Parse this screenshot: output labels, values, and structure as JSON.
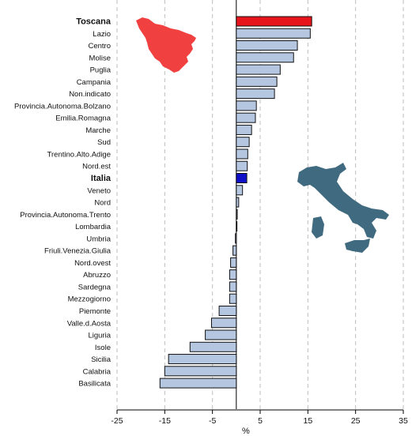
{
  "chart_data": {
    "type": "bar",
    "orientation": "horizontal",
    "xlabel": "%",
    "ylabel": "",
    "xlim": [
      -25,
      35
    ],
    "xticks": [
      -25,
      -15,
      -5,
      5,
      15,
      25,
      35
    ],
    "grid": "vertical dashed lines at ticks",
    "categories": [
      "Toscana",
      "Lazio",
      "Centro",
      "Molise",
      "Puglia",
      "Campania",
      "Non.indicato",
      "Provincia.Autonoma.Bolzano",
      "Emilia.Romagna",
      "Marche",
      "Sud",
      "Trentino.Alto.Adige",
      "Nord.est",
      "Italia",
      "Veneto",
      "Nord",
      "Provincia.Autonoma.Trento",
      "Lombardia",
      "Umbria",
      "Friuli.Venezia.Giulia",
      "Nord.ovest",
      "Abruzzo",
      "Sardegna",
      "Mezzogiorno",
      "Piemonte",
      "Valle.d.Aosta",
      "Liguria",
      "Isole",
      "Sicilia",
      "Calabria",
      "Basilicata"
    ],
    "values": [
      15.8,
      15.5,
      12.8,
      12.0,
      9.2,
      8.5,
      8.0,
      4.2,
      4.0,
      3.2,
      2.7,
      2.4,
      2.3,
      2.2,
      1.3,
      0.5,
      0.2,
      0.0,
      -0.2,
      -0.7,
      -1.2,
      -1.4,
      -1.4,
      -1.4,
      -3.6,
      -5.2,
      -6.5,
      -9.7,
      -14.2,
      -15.0,
      -16.0
    ],
    "highlights": {
      "Toscana": {
        "fill": "#e8141c",
        "label_color": "#c21a1a"
      },
      "Italia": {
        "fill": "#1010c8",
        "label_color": "#1a1aa6"
      }
    },
    "default_fill": "#b4c6e0",
    "bar_stroke": "#111111"
  },
  "decorations": {
    "region_map_icon": "tuscany-map-icon",
    "region_map_color": "#f04040",
    "country_map_icon": "italy-map-icon",
    "country_map_color": "#3f6a80"
  }
}
